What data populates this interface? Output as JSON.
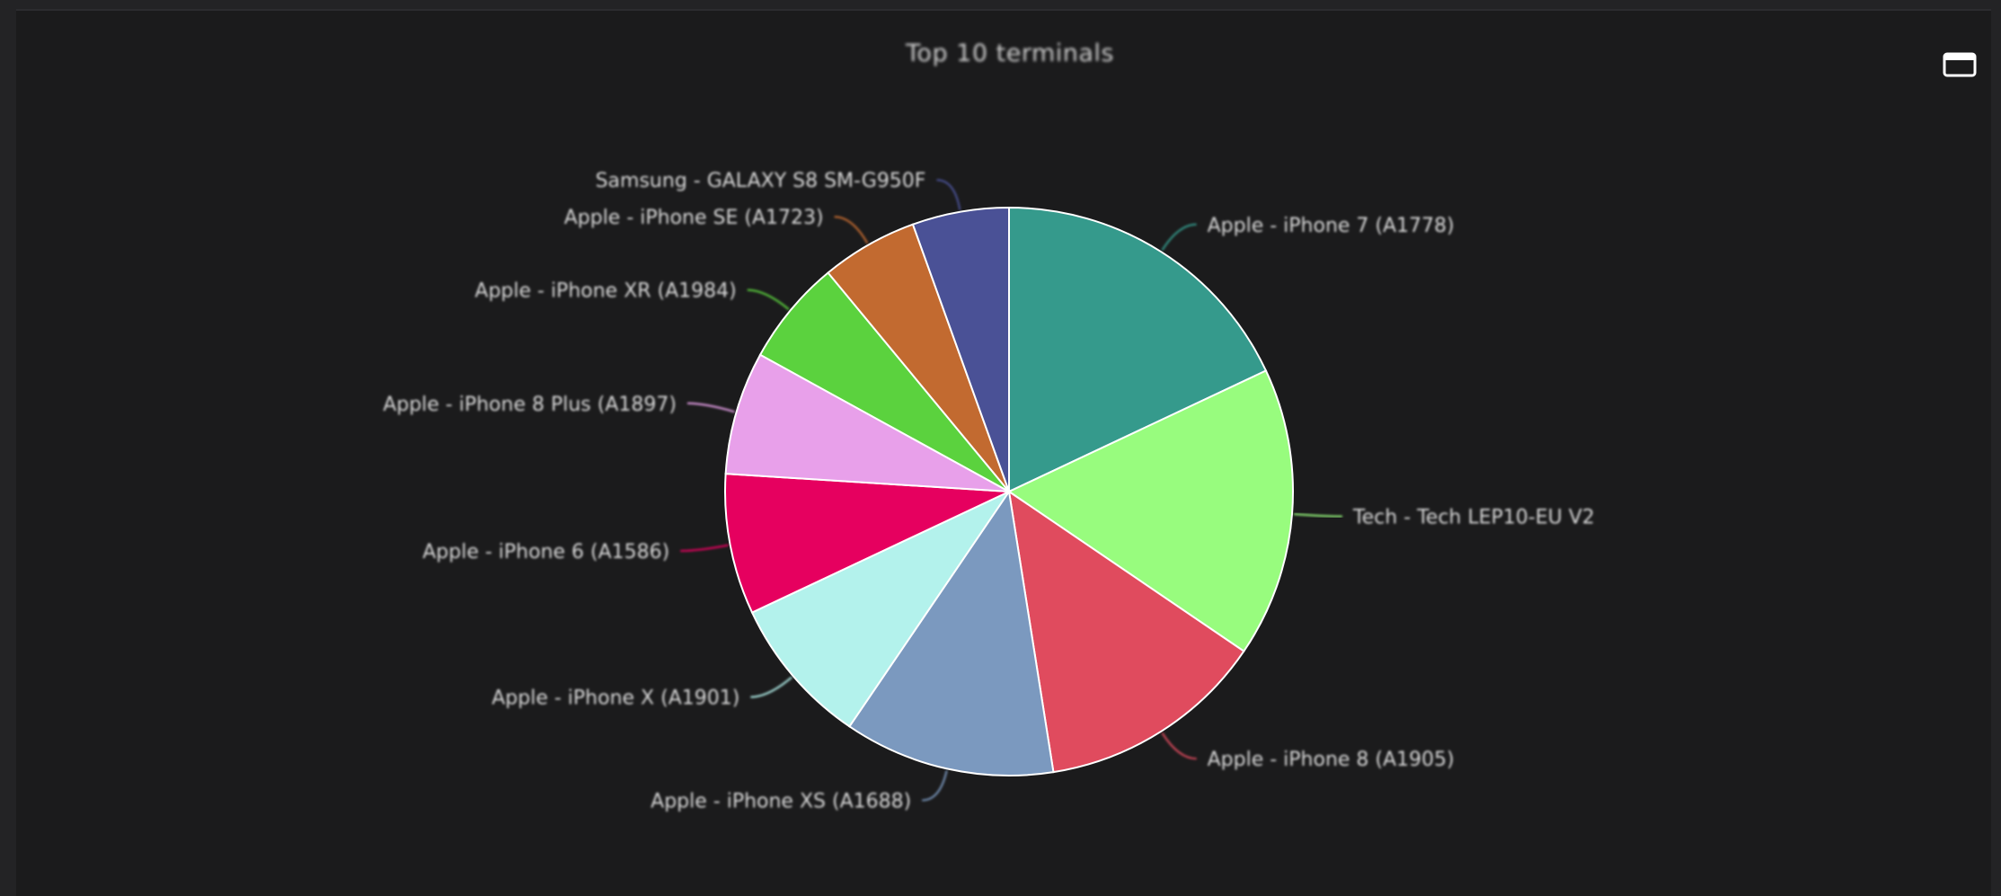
{
  "header": {
    "title": "Top 10 terminals",
    "fullscreen_icon": "window-maximize-icon"
  },
  "chart_data": {
    "type": "pie",
    "title": "Top 10 terminals",
    "start_angle_deg": 0,
    "direction": "clockwise",
    "slices": [
      {
        "label": "Apple - iPhone 7 (A1778)",
        "value": 18.0,
        "color": "#359a8c"
      },
      {
        "label": "Tech - Tech LEP10-EU V2",
        "value": 16.5,
        "color": "#98fc7e"
      },
      {
        "label": "Apple - iPhone 8 (A1905)",
        "value": 13.0,
        "color": "#e04b5e"
      },
      {
        "label": "Apple - iPhone XS (A1688)",
        "value": 12.0,
        "color": "#7b99bf"
      },
      {
        "label": "Apple - iPhone X (A1901)",
        "value": 8.5,
        "color": "#b3f2ec"
      },
      {
        "label": "Apple - iPhone 6 (A1586)",
        "value": 8.0,
        "color": "#e6005f"
      },
      {
        "label": "Apple - iPhone 8 Plus (A1897)",
        "value": 7.0,
        "color": "#e8a0ea"
      },
      {
        "label": "Apple - iPhone XR (A1984)",
        "value": 6.0,
        "color": "#5bd23e"
      },
      {
        "label": "Apple - iPhone SE (A1723)",
        "value": 5.5,
        "color": "#c26a30"
      },
      {
        "label": "Samsung - GALAXY S8 SM-G950F",
        "value": 5.5,
        "color": "#4a5196"
      }
    ]
  }
}
